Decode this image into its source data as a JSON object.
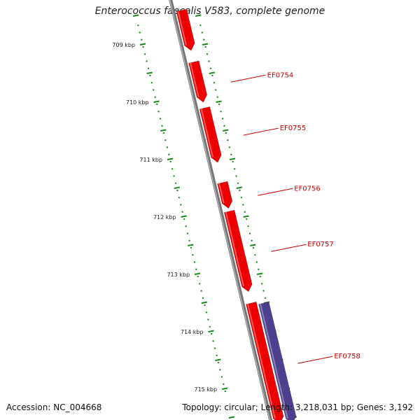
{
  "title": "Enterococcus faecalis V583, complete genome",
  "footer": {
    "accession": "Accession: NC_004668",
    "summary": "Topology: circular; Length: 3,218,031 bp; Genes: 3,192"
  },
  "scale_ticks": [
    {
      "kbp": 709,
      "label": "709 kbp"
    },
    {
      "kbp": 710,
      "label": "710 kbp"
    },
    {
      "kbp": 711,
      "label": "711 kbp"
    },
    {
      "kbp": 712,
      "label": "712 kbp"
    },
    {
      "kbp": 713,
      "label": "713 kbp"
    },
    {
      "kbp": 714,
      "label": "714 kbp"
    },
    {
      "kbp": 715,
      "label": "715 kbp"
    }
  ],
  "genes": [
    {
      "name": "",
      "strand": "forward",
      "start_kbp": 708.4,
      "end_kbp": 709.1,
      "color": "#ee0000"
    },
    {
      "name": "EF0754",
      "strand": "forward",
      "start_kbp": 709.3,
      "end_kbp": 710.0,
      "color": "#ee0000"
    },
    {
      "name": "EF0755",
      "strand": "forward",
      "start_kbp": 710.1,
      "end_kbp": 711.05,
      "color": "#ee0000"
    },
    {
      "name": "EF0756",
      "strand": "forward",
      "start_kbp": 711.4,
      "end_kbp": 711.85,
      "color": "#ee0000"
    },
    {
      "name": "EF0757",
      "strand": "forward",
      "start_kbp": 711.9,
      "end_kbp": 713.3,
      "color": "#ee0000"
    },
    {
      "name": "EF0758",
      "strand": "forward",
      "start_kbp": 713.5,
      "end_kbp": 715.6,
      "color": "#ee0000"
    },
    {
      "name": "",
      "strand": "reverse",
      "start_kbp": 713.5,
      "end_kbp": 715.6,
      "color": "#4f3f8f"
    }
  ],
  "colors": {
    "backbone": "#777777",
    "tick": "#1a8a1a",
    "gene_label": "#cc0000"
  }
}
